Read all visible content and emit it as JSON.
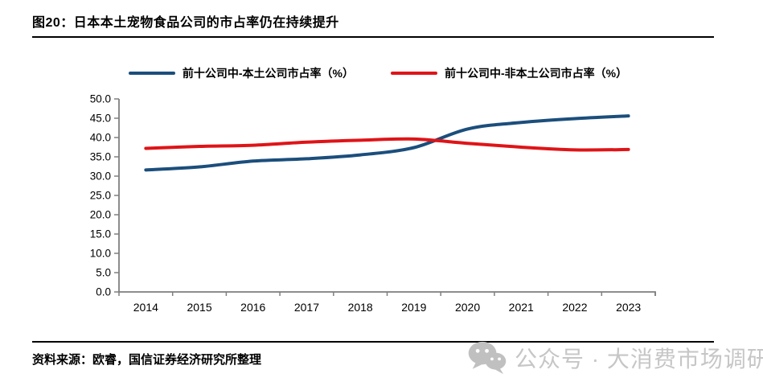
{
  "figure": {
    "title": "图20：日本本土宠物食品公司的市占率仍在持续提升",
    "source_note": "资料来源：欧睿，国信证券经济研究所整理",
    "watermark": {
      "icon": "wechat-icon",
      "text": "公众号 · 大消费市场调研",
      "color": "#c6c6c6"
    }
  },
  "chart_data": {
    "type": "line",
    "title": "",
    "xlabel": "",
    "ylabel": "",
    "categories": [
      "2014",
      "2015",
      "2016",
      "2017",
      "2018",
      "2019",
      "2020",
      "2021",
      "2022",
      "2023"
    ],
    "series": [
      {
        "name": "前十公司中-本土公司市占率（%）",
        "color": "#1b4e7c",
        "values": [
          31.6,
          32.4,
          33.9,
          34.5,
          35.5,
          37.4,
          42.2,
          43.9,
          44.9,
          45.6
        ]
      },
      {
        "name": "前十公司中-非本土公司市占率（%）",
        "color": "#df1418",
        "values": [
          37.2,
          37.7,
          38.0,
          38.8,
          39.3,
          39.6,
          38.5,
          37.5,
          36.8,
          36.9
        ]
      }
    ],
    "ylim": [
      0,
      50
    ],
    "ytick_step": 5,
    "ytick_labels": [
      "0.0",
      "5.0",
      "10.0",
      "15.0",
      "20.0",
      "25.0",
      "30.0",
      "35.0",
      "40.0",
      "45.0",
      "50.0"
    ],
    "grid": false,
    "legend_position": "top",
    "axis_color": "#7f7f7f",
    "tick_label_color": "#000000"
  }
}
